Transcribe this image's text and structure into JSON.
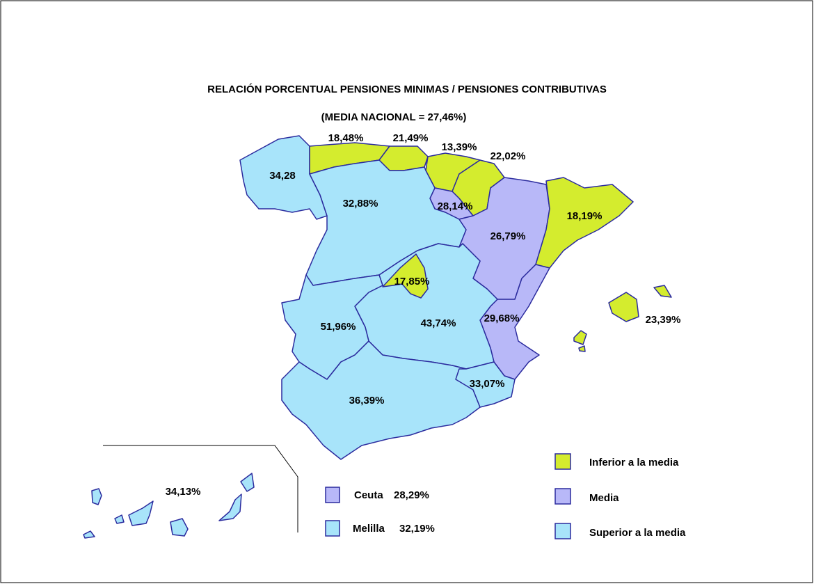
{
  "title": "RELACIÓN PORCENTUAL  PENSIONES MINIMAS / PENSIONES CONTRIBUTIVAS",
  "subtitle": "(MEDIA NACIONAL  = 27,46%)",
  "regions": [
    {
      "label": "34,28"
    },
    {
      "label": "18,48%"
    },
    {
      "label": "21,49%"
    },
    {
      "label": "13,39%"
    },
    {
      "label": "22,02%"
    },
    {
      "label": "28,14%"
    },
    {
      "label": "32,88%"
    },
    {
      "label": "26,79%"
    },
    {
      "label": "18,19%"
    },
    {
      "label": "17,85%"
    },
    {
      "label": "51,96%"
    },
    {
      "label": "43,74%"
    },
    {
      "label": "29,68%"
    },
    {
      "label": "23,39%"
    },
    {
      "label": "33,07%"
    },
    {
      "label": "36,39%"
    },
    {
      "label": "34,13%"
    }
  ],
  "cities": [
    {
      "name": "Ceuta",
      "value": "28,29%"
    },
    {
      "name": "Melilla",
      "value": "32,19%"
    }
  ],
  "legend": [
    {
      "label": "Inferior a la media",
      "color": "#d4ec2e"
    },
    {
      "label": "Media",
      "color": "#b8b8f8"
    },
    {
      "label": "Superior a la media",
      "color": "#a8e4fa"
    }
  ]
}
